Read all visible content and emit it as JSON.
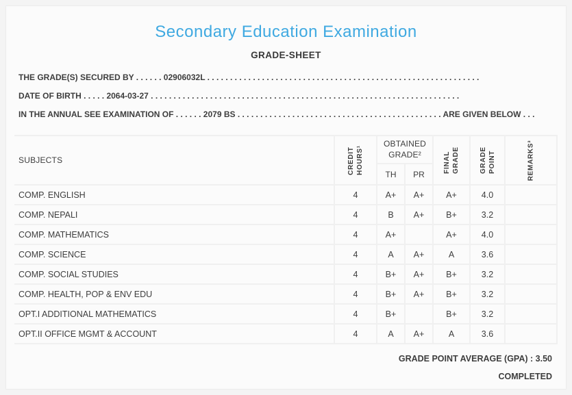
{
  "colors": {
    "accent_blue": "#3fa9e1",
    "text": "#3d3d3d",
    "card_background": "#fbfbfb",
    "grid_line": "#f0f0f0"
  },
  "header": {
    "title": "Secondary Education Examination",
    "subtitle": "GRADE-SHEET"
  },
  "info": {
    "secured_by": "THE GRADE(S) SECURED BY . . . . . . 02906032L . . . . . . . . . . . . . . . . . . . . . . . . . . . . . . . . . . . . . . . . . . . . . . . . . . . . . . . . . . . .",
    "date_of_birth": "DATE OF BIRTH . . . . . 2064-03-27 . . . . . . . . . . . . . . . . . . . . . . . . . . . . . . . . . . . . . . . . . . . . . . . . . . . . . . . . . . . . . . . . . . . .",
    "examination": "IN THE ANNUAL SEE EXAMINATION OF . . . . . . 2079 BS . . . . . . . . . . . . . . . . . . . . . . . . . . . . . . . . . . . . . . . . . . . . . ARE GIVEN BELOW . . ."
  },
  "table": {
    "headers": {
      "subjects": "SUBJECTS",
      "credit_hours": "CREDIT\nHOURS¹",
      "obtained_grade": "OBTAINED\nGRADE²",
      "th": "TH",
      "pr": "PR",
      "final_grade": "FINAL\nGRADE",
      "grade_point": "GRADE\nPOINT",
      "remarks": "REMARKS³"
    },
    "rows": [
      {
        "subject": "COMP. ENGLISH",
        "credit": "4",
        "th": "A+",
        "pr": "A+",
        "final": "A+",
        "point": "4.0",
        "remarks": ""
      },
      {
        "subject": "COMP. NEPALI",
        "credit": "4",
        "th": "B",
        "pr": "A+",
        "final": "B+",
        "point": "3.2",
        "remarks": ""
      },
      {
        "subject": "COMP. MATHEMATICS",
        "credit": "4",
        "th": "A+",
        "pr": "",
        "final": "A+",
        "point": "4.0",
        "remarks": ""
      },
      {
        "subject": "COMP. SCIENCE",
        "credit": "4",
        "th": "A",
        "pr": "A+",
        "final": "A",
        "point": "3.6",
        "remarks": ""
      },
      {
        "subject": "COMP. SOCIAL STUDIES",
        "credit": "4",
        "th": "B+",
        "pr": "A+",
        "final": "B+",
        "point": "3.2",
        "remarks": ""
      },
      {
        "subject": "COMP. HEALTH, POP & ENV EDU",
        "credit": "4",
        "th": "B+",
        "pr": "A+",
        "final": "B+",
        "point": "3.2",
        "remarks": ""
      },
      {
        "subject": "OPT.I ADDITIONAL MATHEMATICS",
        "credit": "4",
        "th": "B+",
        "pr": "",
        "final": "B+",
        "point": "3.2",
        "remarks": ""
      },
      {
        "subject": "OPT.II OFFICE MGMT & ACCOUNT",
        "credit": "4",
        "th": "A",
        "pr": "A+",
        "final": "A",
        "point": "3.6",
        "remarks": ""
      }
    ]
  },
  "footer": {
    "gpa_label": "GRADE POINT AVERAGE (GPA) :",
    "gpa_value": "3.50",
    "status": "COMPLETED"
  }
}
